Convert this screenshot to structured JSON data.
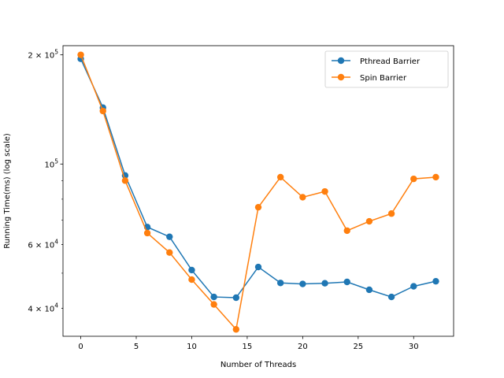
{
  "chart_data": {
    "type": "line",
    "xlabel": "Number of Threads",
    "ylabel": "Running Time(ms) (log scale)",
    "xlim": [
      -1.6,
      33.6
    ],
    "ylim": [
      33500,
      212000
    ],
    "yscale": "log",
    "grid": false,
    "legend_position": "top-right",
    "x_ticks": [
      0,
      5,
      10,
      15,
      20,
      25,
      30
    ],
    "y_major_ticks": [
      {
        "value": 100000,
        "mantissa": "10",
        "exp": "5"
      },
      {
        "value": 200000,
        "mantissa": "2 × 10",
        "exp": "5"
      }
    ],
    "y_minor_labeled_ticks": [
      {
        "value": 40000,
        "mantissa": "4 × 10",
        "exp": "4"
      },
      {
        "value": 60000,
        "mantissa": "6 × 10",
        "exp": "4"
      }
    ],
    "y_minor_unlabeled_ticks": [
      50000,
      70000,
      80000,
      90000
    ],
    "x": [
      0,
      2,
      4,
      6,
      8,
      10,
      12,
      14,
      16,
      18,
      20,
      22,
      24,
      26,
      28,
      30,
      32
    ],
    "series": [
      {
        "name": "Pthread Barrier",
        "color": "#1f77b4",
        "values": [
          195000,
          143000,
          93000,
          67000,
          63000,
          51000,
          43000,
          42800,
          52000,
          47000,
          46700,
          46900,
          47300,
          45000,
          43000,
          46000,
          47500
        ]
      },
      {
        "name": "Spin Barrier",
        "color": "#ff7f0e",
        "values": [
          200000,
          140000,
          90000,
          64500,
          57000,
          48000,
          41000,
          35000,
          76000,
          92000,
          81000,
          84000,
          65500,
          69500,
          73000,
          91000,
          92000
        ]
      }
    ]
  }
}
